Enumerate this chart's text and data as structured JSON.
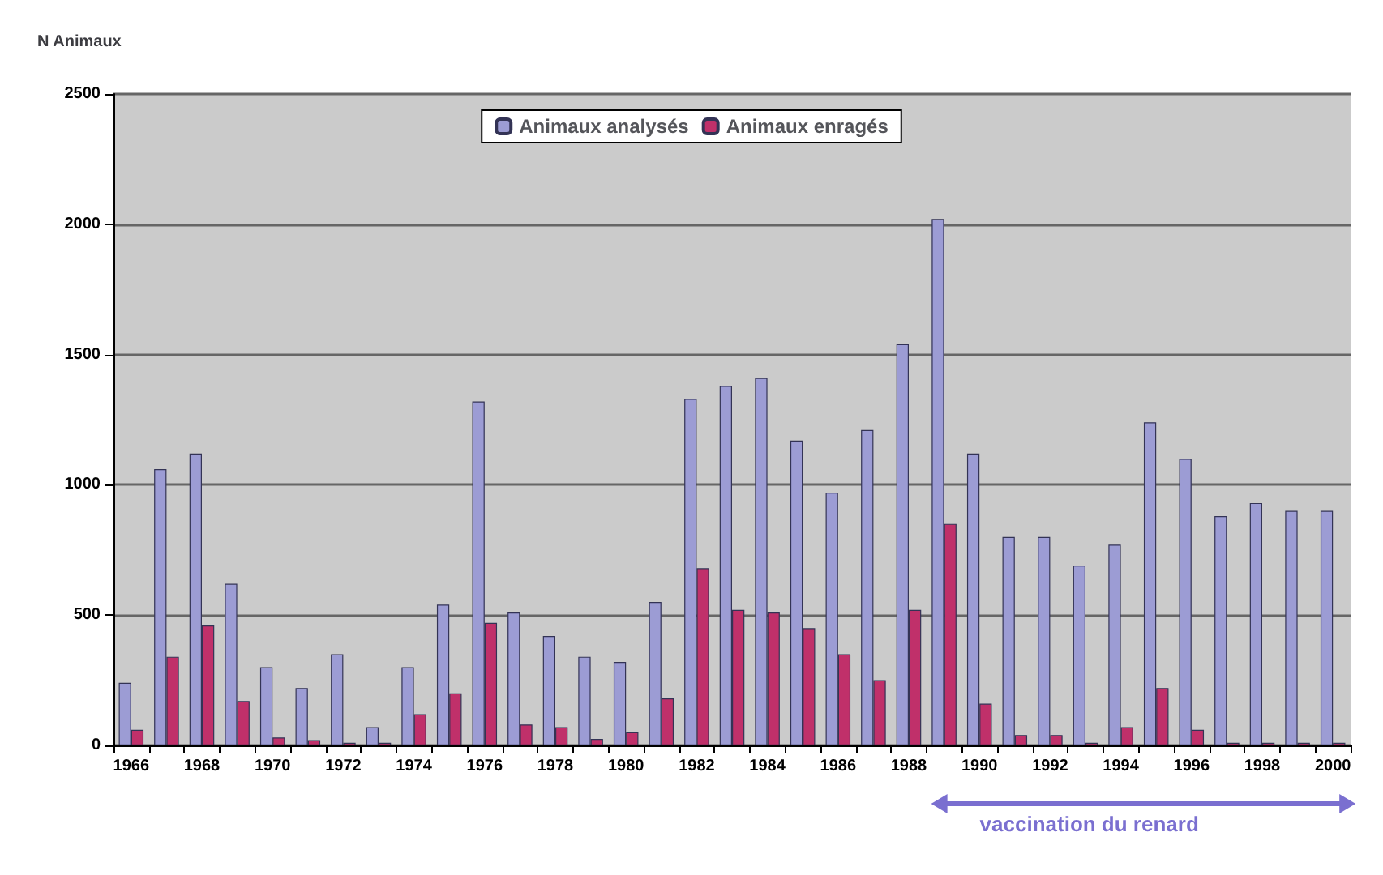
{
  "chart_data": {
    "type": "bar",
    "ylabel": "N Animaux",
    "categories": [
      "1966",
      null,
      "1968",
      null,
      "1970",
      null,
      "1972",
      null,
      "1974",
      null,
      "1976",
      null,
      "1978",
      null,
      "1980",
      null,
      "1982",
      null,
      "1984",
      null,
      "1986",
      null,
      "1988",
      null,
      "1990",
      null,
      "1992",
      null,
      "1994",
      null,
      "1996",
      null,
      "1998",
      null,
      "2000"
    ],
    "series": [
      {
        "name": "Animaux analysés",
        "color": "#9c9cd4",
        "values": [
          240,
          1060,
          1120,
          620,
          300,
          220,
          350,
          70,
          300,
          540,
          1320,
          510,
          420,
          340,
          320,
          550,
          1330,
          1380,
          1410,
          1170,
          970,
          1210,
          1540,
          2020,
          1120,
          800,
          800,
          690,
          770,
          1240,
          1100,
          880,
          930,
          900,
          900
        ]
      },
      {
        "name": "Animaux enragés",
        "color": "#c0306a",
        "values": [
          60,
          340,
          460,
          170,
          30,
          20,
          10,
          10,
          120,
          200,
          470,
          80,
          70,
          25,
          50,
          180,
          680,
          520,
          510,
          450,
          350,
          250,
          520,
          850,
          160,
          40,
          40,
          10,
          70,
          220,
          60,
          10,
          10,
          10,
          10
        ]
      }
    ],
    "ylim": [
      0,
      2500
    ],
    "yticks": [
      0,
      500,
      1000,
      1500,
      2000,
      2500
    ],
    "grid": "y",
    "legend": "top",
    "annotations": [
      "vaccination du renard"
    ]
  }
}
